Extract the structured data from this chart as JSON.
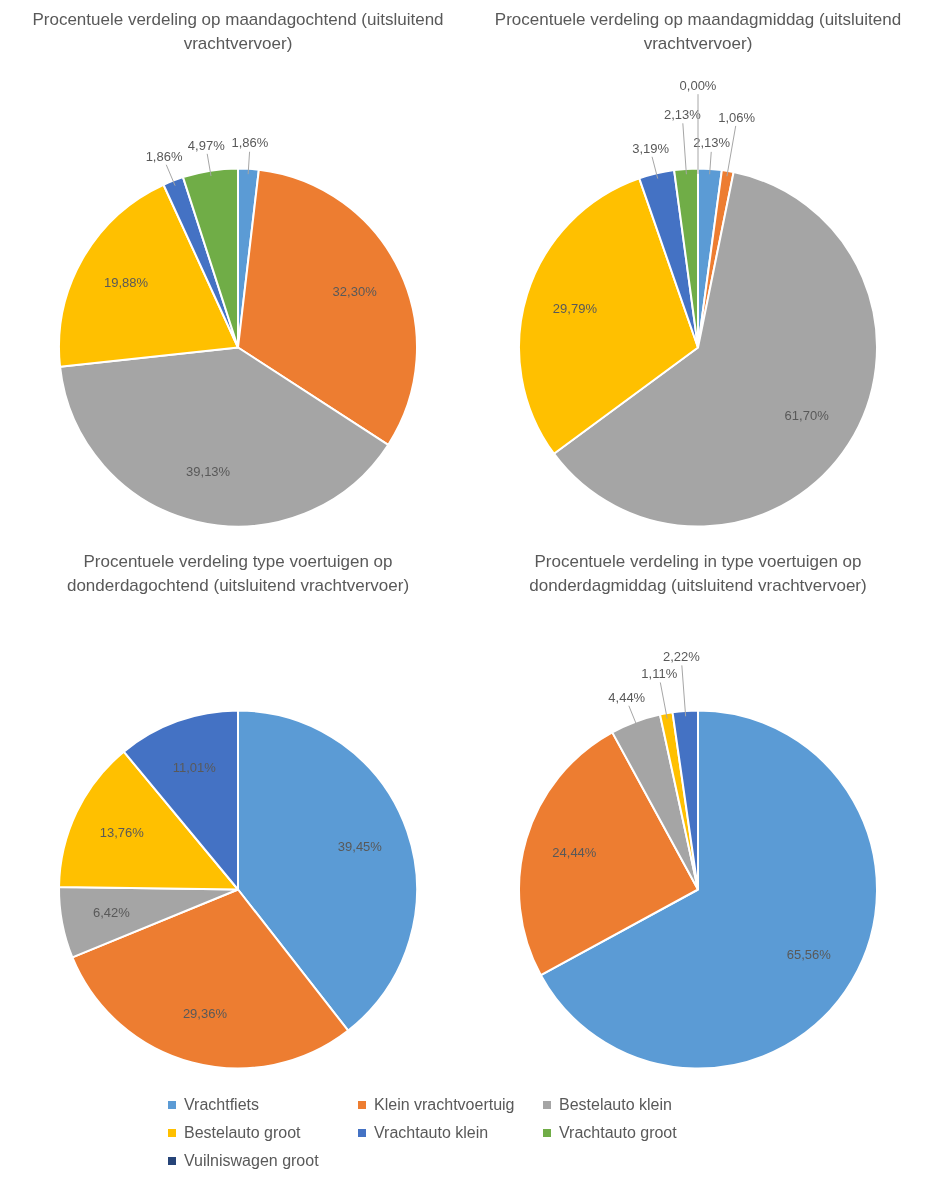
{
  "chart_data": [
    {
      "type": "pie",
      "title": "Procentuele verdeling op maandagochtend (uitsluitend vrachtvervoer)",
      "categories": [
        null,
        null,
        null,
        null,
        null,
        null,
        null
      ],
      "values": [
        1.86,
        32.3,
        39.13,
        19.88,
        1.86,
        4.97,
        null
      ],
      "value_labels": [
        "1,86%",
        "32,30%",
        "39,13%",
        "19,88%",
        "1,86%",
        "4,97%",
        null
      ],
      "colors": [
        "#5b9bd5",
        "#ed7d31",
        "#a5a5a5",
        "#ffc000",
        "#4472c4",
        "#70ad47",
        "#264478"
      ],
      "legend": false
    },
    {
      "type": "pie",
      "title": "Procentuele verdeling op maandagmiddag (uitsluitend vrachtvervoer)",
      "categories": [
        null,
        null,
        null,
        null,
        null,
        null,
        null
      ],
      "values": [
        2.13,
        1.06,
        61.7,
        29.79,
        3.19,
        2.13,
        0.0
      ],
      "value_labels": [
        "2,13%",
        "1,06%",
        "61,70%",
        "29,79%",
        "3,19%",
        "2,13%",
        "0,00%"
      ],
      "colors": [
        "#5b9bd5",
        "#ed7d31",
        "#a5a5a5",
        "#ffc000",
        "#4472c4",
        "#70ad47",
        "#264478"
      ],
      "legend": false
    },
    {
      "type": "pie",
      "title": "Procentuele verdeling type voertuigen op donderdagochtend (uitsluitend vrachtvervoer)",
      "categories": [
        null,
        null,
        null,
        null,
        null,
        null,
        null
      ],
      "values": [
        39.45,
        29.36,
        6.42,
        13.76,
        11.01,
        null,
        null
      ],
      "value_labels": [
        "39,45%",
        "29,36%",
        "6,42%",
        "13,76%",
        "11,01%",
        null,
        null
      ],
      "colors": [
        "#5b9bd5",
        "#ed7d31",
        "#a5a5a5",
        "#ffc000",
        "#4472c4",
        "#70ad47",
        "#264478"
      ],
      "legend": false
    },
    {
      "type": "pie",
      "title": "Procentuele verdeling in type voertuigen op donderdagmiddag (uitsluitend vrachtvervoer)",
      "categories": [
        "Vrachtfiets",
        "Klein vrachtvoertuig",
        "Bestelauto klein",
        "Bestelauto groot",
        "Vrachtauto klein",
        "Vrachtauto groot",
        "Vuilniswagen groot"
      ],
      "values": [
        65.56,
        24.44,
        4.44,
        1.11,
        2.22,
        null,
        null
      ],
      "value_labels": [
        "65,56%",
        "24,44%",
        "4,44%",
        "1,11%",
        "2,22%",
        null,
        null
      ],
      "colors": [
        "#5b9bd5",
        "#ed7d31",
        "#a5a5a5",
        "#ffc000",
        "#4472c4",
        "#70ad47",
        "#264478"
      ],
      "legend": "bottom"
    }
  ]
}
